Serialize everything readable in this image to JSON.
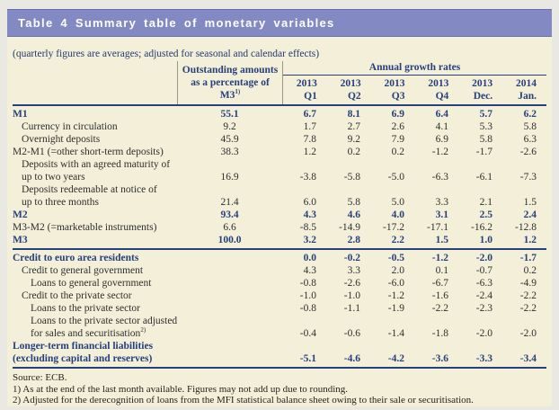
{
  "title": "Table 4 Summary table of monetary variables",
  "subtitle": "(quarterly figures are averages; adjusted for seasonal and calendar effects)",
  "colors": {
    "title_bar": "#8289c3",
    "paper": "#f4efd9",
    "navy": "#26407e",
    "body_text": "#2e2e2e"
  },
  "table": {
    "outstanding_header": {
      "line1": "Outstanding amounts",
      "line2": "as a percentage of",
      "line3": "M3",
      "sup": "1)"
    },
    "growth_header": "Annual growth rates",
    "columns": [
      {
        "year": "2013",
        "period": "Q1"
      },
      {
        "year": "2013",
        "period": "Q2"
      },
      {
        "year": "2013",
        "period": "Q3"
      },
      {
        "year": "2013",
        "period": "Q4"
      },
      {
        "year": "2013",
        "period": "Dec."
      },
      {
        "year": "2014",
        "period": "Jan."
      }
    ],
    "sections": [
      {
        "rows": [
          {
            "label": "M1",
            "out": "55.1",
            "v": [
              "6.7",
              "8.1",
              "6.9",
              "6.4",
              "5.7",
              "6.2"
            ]
          },
          {
            "label": "Currency in circulation",
            "out": "9.2",
            "v": [
              "1.7",
              "2.7",
              "2.6",
              "4.1",
              "5.3",
              "5.8"
            ]
          },
          {
            "label": "Overnight deposits",
            "out": "45.9",
            "v": [
              "7.8",
              "9.2",
              "7.9",
              "6.9",
              "5.8",
              "6.3"
            ]
          },
          {
            "label": "M2-M1 (=other short-term deposits)",
            "out": "38.3",
            "v": [
              "1.2",
              "0.2",
              "0.2",
              "-1.2",
              "-1.7",
              "-2.6"
            ]
          },
          {
            "label": "Deposits with an agreed maturity of",
            "label2": "up to two years",
            "out": "16.9",
            "v": [
              "-3.8",
              "-5.8",
              "-5.0",
              "-6.3",
              "-6.1",
              "-7.3"
            ]
          },
          {
            "label": "Deposits redeemable at notice of",
            "label2": "up to three months",
            "out": "21.4",
            "v": [
              "6.0",
              "5.8",
              "5.0",
              "3.3",
              "2.1",
              "1.5"
            ]
          },
          {
            "label": "M2",
            "out": "93.4",
            "v": [
              "4.3",
              "4.6",
              "4.0",
              "3.1",
              "2.5",
              "2.4"
            ]
          },
          {
            "label": "M3-M2 (=marketable instruments)",
            "out": "6.6",
            "v": [
              "-8.5",
              "-14.9",
              "-17.2",
              "-17.1",
              "-16.2",
              "-12.8"
            ]
          },
          {
            "label": "M3",
            "out": "100.0",
            "v": [
              "3.2",
              "2.8",
              "2.2",
              "1.5",
              "1.0",
              "1.2"
            ]
          }
        ]
      },
      {
        "rows": [
          {
            "label": "Credit to euro area residents",
            "out": "",
            "v": [
              "0.0",
              "-0.2",
              "-0.5",
              "-1.2",
              "-2.0",
              "-1.7"
            ]
          },
          {
            "label": "Credit to general government",
            "out": "",
            "v": [
              "4.3",
              "3.3",
              "2.0",
              "0.1",
              "-0.7",
              "0.2"
            ]
          },
          {
            "label": "Loans to general government",
            "out": "",
            "v": [
              "-0.8",
              "-2.6",
              "-6.0",
              "-6.7",
              "-6.3",
              "-4.9"
            ]
          },
          {
            "label": "Credit to the private sector",
            "out": "",
            "v": [
              "-1.0",
              "-1.0",
              "-1.2",
              "-1.6",
              "-2.4",
              "-2.2"
            ]
          },
          {
            "label": "Loans to the private sector",
            "out": "",
            "v": [
              "-0.8",
              "-1.1",
              "-1.9",
              "-2.2",
              "-2.3",
              "-2.2"
            ]
          },
          {
            "label": "Loans to the private sector adjusted",
            "label2": "for sales and securitisation",
            "sup": "2)",
            "out": "",
            "v": [
              "-0.4",
              "-0.6",
              "-1.4",
              "-1.8",
              "-2.0",
              "-2.0"
            ]
          },
          {
            "label": "Longer-term financial liabilities",
            "label2": "(excluding capital and reserves)",
            "out": "",
            "v": [
              "-5.1",
              "-4.6",
              "-4.2",
              "-3.6",
              "-3.3",
              "-3.4"
            ]
          }
        ]
      }
    ]
  },
  "footer": {
    "source": "Source: ECB.",
    "notes": [
      "1) As at the end of the last month available. Figures may not add up due to rounding.",
      "2) Adjusted for the derecognition of loans from the MFI statistical balance sheet owing to their sale or securitisation."
    ]
  }
}
